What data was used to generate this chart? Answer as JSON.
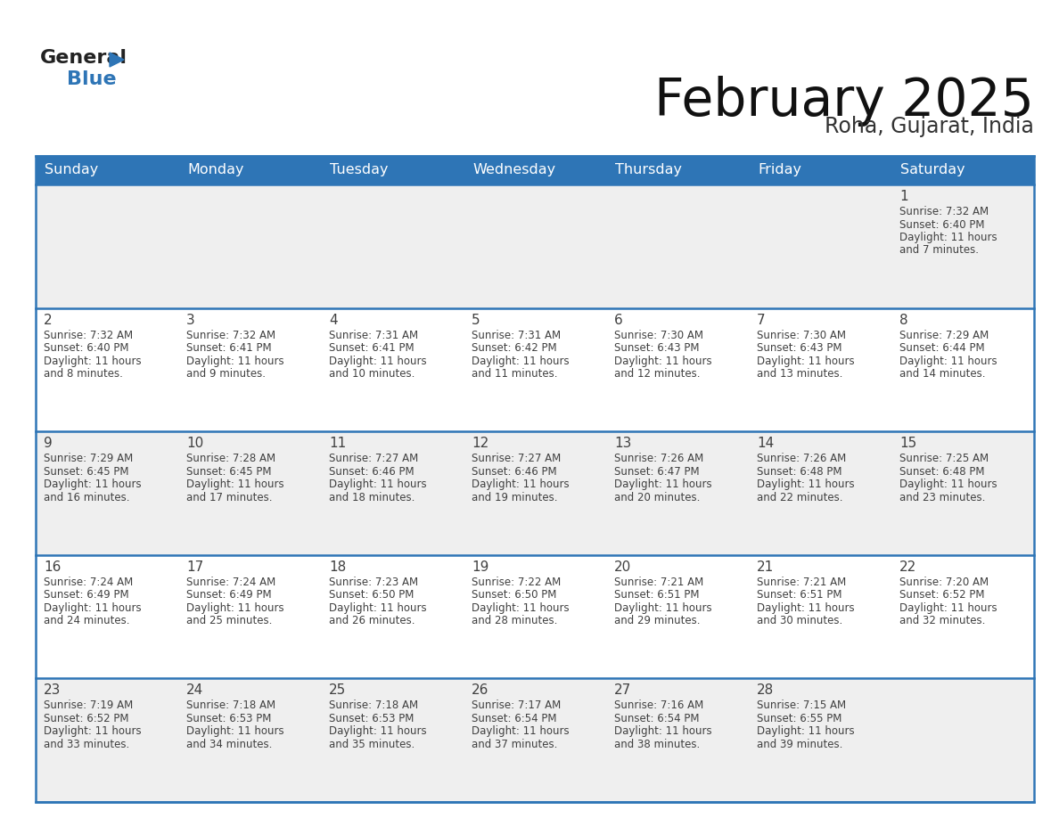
{
  "title": "February 2025",
  "subtitle": "Roha, Gujarat, India",
  "header_bg": "#2E75B6",
  "header_text_color": "#FFFFFF",
  "day_names": [
    "Sunday",
    "Monday",
    "Tuesday",
    "Wednesday",
    "Thursday",
    "Friday",
    "Saturday"
  ],
  "bg_color": "#FFFFFF",
  "cell_bg_light": "#EFEFEF",
  "cell_bg_white": "#FFFFFF",
  "separator_color": "#2E75B6",
  "text_color": "#404040",
  "days": [
    {
      "day": 1,
      "col": 6,
      "row": 0,
      "sunrise": "7:32 AM",
      "sunset": "6:40 PM",
      "daylight_h": "11",
      "daylight_m": "7"
    },
    {
      "day": 2,
      "col": 0,
      "row": 1,
      "sunrise": "7:32 AM",
      "sunset": "6:40 PM",
      "daylight_h": "11",
      "daylight_m": "8"
    },
    {
      "day": 3,
      "col": 1,
      "row": 1,
      "sunrise": "7:32 AM",
      "sunset": "6:41 PM",
      "daylight_h": "11",
      "daylight_m": "9"
    },
    {
      "day": 4,
      "col": 2,
      "row": 1,
      "sunrise": "7:31 AM",
      "sunset": "6:41 PM",
      "daylight_h": "11",
      "daylight_m": "10"
    },
    {
      "day": 5,
      "col": 3,
      "row": 1,
      "sunrise": "7:31 AM",
      "sunset": "6:42 PM",
      "daylight_h": "11",
      "daylight_m": "11"
    },
    {
      "day": 6,
      "col": 4,
      "row": 1,
      "sunrise": "7:30 AM",
      "sunset": "6:43 PM",
      "daylight_h": "11",
      "daylight_m": "12"
    },
    {
      "day": 7,
      "col": 5,
      "row": 1,
      "sunrise": "7:30 AM",
      "sunset": "6:43 PM",
      "daylight_h": "11",
      "daylight_m": "13"
    },
    {
      "day": 8,
      "col": 6,
      "row": 1,
      "sunrise": "7:29 AM",
      "sunset": "6:44 PM",
      "daylight_h": "11",
      "daylight_m": "14"
    },
    {
      "day": 9,
      "col": 0,
      "row": 2,
      "sunrise": "7:29 AM",
      "sunset": "6:45 PM",
      "daylight_h": "11",
      "daylight_m": "16"
    },
    {
      "day": 10,
      "col": 1,
      "row": 2,
      "sunrise": "7:28 AM",
      "sunset": "6:45 PM",
      "daylight_h": "11",
      "daylight_m": "17"
    },
    {
      "day": 11,
      "col": 2,
      "row": 2,
      "sunrise": "7:27 AM",
      "sunset": "6:46 PM",
      "daylight_h": "11",
      "daylight_m": "18"
    },
    {
      "day": 12,
      "col": 3,
      "row": 2,
      "sunrise": "7:27 AM",
      "sunset": "6:46 PM",
      "daylight_h": "11",
      "daylight_m": "19"
    },
    {
      "day": 13,
      "col": 4,
      "row": 2,
      "sunrise": "7:26 AM",
      "sunset": "6:47 PM",
      "daylight_h": "11",
      "daylight_m": "20"
    },
    {
      "day": 14,
      "col": 5,
      "row": 2,
      "sunrise": "7:26 AM",
      "sunset": "6:48 PM",
      "daylight_h": "11",
      "daylight_m": "22"
    },
    {
      "day": 15,
      "col": 6,
      "row": 2,
      "sunrise": "7:25 AM",
      "sunset": "6:48 PM",
      "daylight_h": "11",
      "daylight_m": "23"
    },
    {
      "day": 16,
      "col": 0,
      "row": 3,
      "sunrise": "7:24 AM",
      "sunset": "6:49 PM",
      "daylight_h": "11",
      "daylight_m": "24"
    },
    {
      "day": 17,
      "col": 1,
      "row": 3,
      "sunrise": "7:24 AM",
      "sunset": "6:49 PM",
      "daylight_h": "11",
      "daylight_m": "25"
    },
    {
      "day": 18,
      "col": 2,
      "row": 3,
      "sunrise": "7:23 AM",
      "sunset": "6:50 PM",
      "daylight_h": "11",
      "daylight_m": "26"
    },
    {
      "day": 19,
      "col": 3,
      "row": 3,
      "sunrise": "7:22 AM",
      "sunset": "6:50 PM",
      "daylight_h": "11",
      "daylight_m": "28"
    },
    {
      "day": 20,
      "col": 4,
      "row": 3,
      "sunrise": "7:21 AM",
      "sunset": "6:51 PM",
      "daylight_h": "11",
      "daylight_m": "29"
    },
    {
      "day": 21,
      "col": 5,
      "row": 3,
      "sunrise": "7:21 AM",
      "sunset": "6:51 PM",
      "daylight_h": "11",
      "daylight_m": "30"
    },
    {
      "day": 22,
      "col": 6,
      "row": 3,
      "sunrise": "7:20 AM",
      "sunset": "6:52 PM",
      "daylight_h": "11",
      "daylight_m": "32"
    },
    {
      "day": 23,
      "col": 0,
      "row": 4,
      "sunrise": "7:19 AM",
      "sunset": "6:52 PM",
      "daylight_h": "11",
      "daylight_m": "33"
    },
    {
      "day": 24,
      "col": 1,
      "row": 4,
      "sunrise": "7:18 AM",
      "sunset": "6:53 PM",
      "daylight_h": "11",
      "daylight_m": "34"
    },
    {
      "day": 25,
      "col": 2,
      "row": 4,
      "sunrise": "7:18 AM",
      "sunset": "6:53 PM",
      "daylight_h": "11",
      "daylight_m": "35"
    },
    {
      "day": 26,
      "col": 3,
      "row": 4,
      "sunrise": "7:17 AM",
      "sunset": "6:54 PM",
      "daylight_h": "11",
      "daylight_m": "37"
    },
    {
      "day": 27,
      "col": 4,
      "row": 4,
      "sunrise": "7:16 AM",
      "sunset": "6:54 PM",
      "daylight_h": "11",
      "daylight_m": "38"
    },
    {
      "day": 28,
      "col": 5,
      "row": 4,
      "sunrise": "7:15 AM",
      "sunset": "6:55 PM",
      "daylight_h": "11",
      "daylight_m": "39"
    }
  ]
}
